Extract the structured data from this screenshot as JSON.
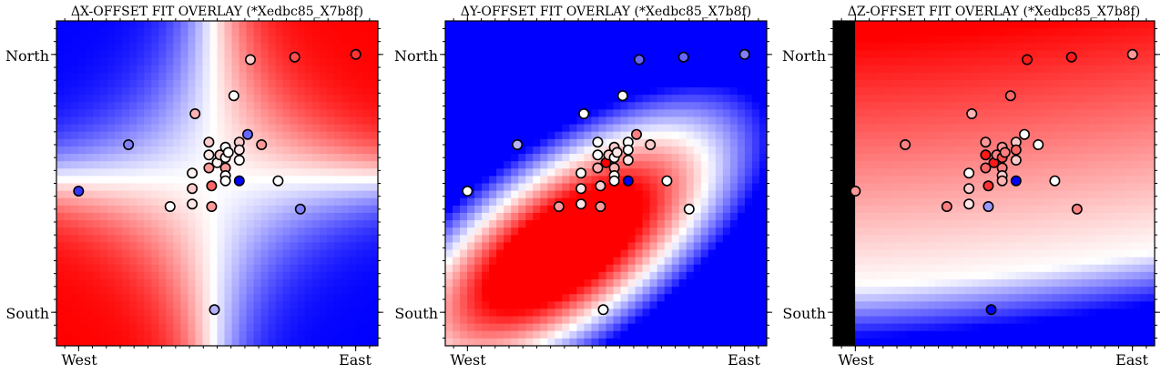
{
  "colors": {
    "red": "#ff0000",
    "white": "#ffffff",
    "blue": "#0000ff",
    "marker_edge": "#000000",
    "tick": "#000000"
  },
  "charts": [
    {
      "title": "ΔX-OFFSET FIT OVERLAY (*Xedbc85_X7b8f)",
      "xticks": [
        "West",
        "East"
      ],
      "yticks": [
        "North",
        "South"
      ]
    },
    {
      "title": "ΔY-OFFSET FIT OVERLAY (*Xedbc85_X7b8f)",
      "xticks": [
        "West",
        "East"
      ],
      "yticks": [
        "North",
        "South"
      ]
    },
    {
      "title": "ΔZ-OFFSET FIT OVERLAY (*Xedbc85_X7b8f)",
      "xticks": [
        "West",
        "East"
      ],
      "yticks": [
        "North",
        "South"
      ]
    }
  ],
  "chart_data": [
    {
      "type": "heatmap",
      "title": "ΔX-OFFSET FIT OVERLAY (*Xedbc85_X7b8f)",
      "xlim": [
        -0.08,
        1.08
      ],
      "ylim": [
        -0.13,
        1.13
      ],
      "xticks": [
        {
          "label": "West",
          "value": 0
        },
        {
          "label": "East",
          "value": 1
        }
      ],
      "yticks": [
        {
          "label": "North",
          "value": 1
        },
        {
          "label": "South",
          "value": 0
        }
      ],
      "colormap": "bwr",
      "background_field": "red upper-right and lower-left, blue upper-left and lower-right",
      "points": [
        {
          "x": 0.0,
          "y": 0.47,
          "c": -0.8
        },
        {
          "x": 0.18,
          "y": 0.65,
          "c": -0.5
        },
        {
          "x": 0.33,
          "y": 0.41,
          "c": 0.0
        },
        {
          "x": 0.41,
          "y": 0.54,
          "c": 0.05
        },
        {
          "x": 0.41,
          "y": 0.48,
          "c": 0.2
        },
        {
          "x": 0.41,
          "y": 0.42,
          "c": 0.1
        },
        {
          "x": 0.42,
          "y": 0.77,
          "c": 0.3
        },
        {
          "x": 0.47,
          "y": 0.56,
          "c": 0.4
        },
        {
          "x": 0.47,
          "y": 0.66,
          "c": 0.2
        },
        {
          "x": 0.47,
          "y": 0.61,
          "c": 0.1
        },
        {
          "x": 0.48,
          "y": 0.49,
          "c": 0.6
        },
        {
          "x": 0.48,
          "y": 0.41,
          "c": 0.4
        },
        {
          "x": 0.49,
          "y": 0.01,
          "c": -0.3
        },
        {
          "x": 0.5,
          "y": 0.58,
          "c": 0.05
        },
        {
          "x": 0.51,
          "y": 0.61,
          "c": 0.2
        },
        {
          "x": 0.53,
          "y": 0.6,
          "c": 0.0
        },
        {
          "x": 0.53,
          "y": 0.64,
          "c": 0.0
        },
        {
          "x": 0.53,
          "y": 0.56,
          "c": 0.4
        },
        {
          "x": 0.53,
          "y": 0.53,
          "c": 0.0
        },
        {
          "x": 0.53,
          "y": 0.51,
          "c": 0.0
        },
        {
          "x": 0.54,
          "y": 0.62,
          "c": 0.0
        },
        {
          "x": 0.56,
          "y": 0.84,
          "c": 0.0
        },
        {
          "x": 0.58,
          "y": 0.66,
          "c": 0.2
        },
        {
          "x": 0.58,
          "y": 0.63,
          "c": 0.1
        },
        {
          "x": 0.58,
          "y": 0.59,
          "c": 0.0
        },
        {
          "x": 0.58,
          "y": 0.51,
          "c": -1.0
        },
        {
          "x": 0.61,
          "y": 0.69,
          "c": -0.6
        },
        {
          "x": 0.62,
          "y": 0.98,
          "c": 0.2
        },
        {
          "x": 0.66,
          "y": 0.65,
          "c": 0.4
        },
        {
          "x": 0.72,
          "y": 0.51,
          "c": 0.0
        },
        {
          "x": 0.78,
          "y": 0.99,
          "c": 0.7
        },
        {
          "x": 0.8,
          "y": 0.4,
          "c": -0.5
        },
        {
          "x": 1.0,
          "y": 1.0,
          "c": 0.8
        }
      ]
    },
    {
      "type": "heatmap",
      "title": "ΔY-OFFSET FIT OVERLAY (*Xedbc85_X7b8f)",
      "xlim": [
        -0.08,
        1.08
      ],
      "ylim": [
        -0.13,
        1.13
      ],
      "xticks": [
        {
          "label": "West",
          "value": 0
        },
        {
          "label": "East",
          "value": 1
        }
      ],
      "yticks": [
        {
          "label": "North",
          "value": 1
        },
        {
          "label": "South",
          "value": 0
        }
      ],
      "colormap": "bwr",
      "background_field": "red elongated blob lower-left to center, blue elsewhere (strong upper-left and right)",
      "points": [
        {
          "x": 0.0,
          "y": 0.47,
          "c": 0.0
        },
        {
          "x": 0.18,
          "y": 0.65,
          "c": -0.3
        },
        {
          "x": 0.33,
          "y": 0.41,
          "c": 0.4
        },
        {
          "x": 0.41,
          "y": 0.54,
          "c": 0.0
        },
        {
          "x": 0.41,
          "y": 0.48,
          "c": 0.1
        },
        {
          "x": 0.41,
          "y": 0.42,
          "c": 0.1
        },
        {
          "x": 0.42,
          "y": 0.77,
          "c": 0.0
        },
        {
          "x": 0.47,
          "y": 0.56,
          "c": 0.3
        },
        {
          "x": 0.47,
          "y": 0.66,
          "c": 0.0
        },
        {
          "x": 0.47,
          "y": 0.61,
          "c": 0.0
        },
        {
          "x": 0.48,
          "y": 0.49,
          "c": 0.2
        },
        {
          "x": 0.48,
          "y": 0.41,
          "c": 0.4
        },
        {
          "x": 0.49,
          "y": 0.01,
          "c": 0.0
        },
        {
          "x": 0.5,
          "y": 0.58,
          "c": 1.0
        },
        {
          "x": 0.51,
          "y": 0.61,
          "c": 0.2
        },
        {
          "x": 0.53,
          "y": 0.6,
          "c": 0.0
        },
        {
          "x": 0.53,
          "y": 0.64,
          "c": 0.2
        },
        {
          "x": 0.53,
          "y": 0.56,
          "c": 0.3
        },
        {
          "x": 0.53,
          "y": 0.53,
          "c": 0.0
        },
        {
          "x": 0.53,
          "y": 0.51,
          "c": 0.0
        },
        {
          "x": 0.54,
          "y": 0.62,
          "c": 0.1
        },
        {
          "x": 0.56,
          "y": 0.84,
          "c": 0.0
        },
        {
          "x": 0.58,
          "y": 0.66,
          "c": 0.0
        },
        {
          "x": 0.58,
          "y": 0.63,
          "c": 0.0
        },
        {
          "x": 0.58,
          "y": 0.59,
          "c": 0.1
        },
        {
          "x": 0.58,
          "y": 0.51,
          "c": -1.0
        },
        {
          "x": 0.61,
          "y": 0.69,
          "c": 0.5
        },
        {
          "x": 0.62,
          "y": 0.98,
          "c": -0.6
        },
        {
          "x": 0.66,
          "y": 0.65,
          "c": 0.2
        },
        {
          "x": 0.72,
          "y": 0.51,
          "c": 0.0
        },
        {
          "x": 0.78,
          "y": 0.99,
          "c": -0.6
        },
        {
          "x": 0.8,
          "y": 0.4,
          "c": 0.0
        },
        {
          "x": 1.0,
          "y": 1.0,
          "c": -0.5
        }
      ]
    },
    {
      "type": "heatmap",
      "title": "ΔZ-OFFSET FIT OVERLAY (*Xedbc85_X7b8f)",
      "xlim": [
        -0.08,
        1.08
      ],
      "ylim": [
        -0.13,
        1.13
      ],
      "xticks": [
        {
          "label": "West",
          "value": 0
        },
        {
          "label": "East",
          "value": 1
        }
      ],
      "yticks": [
        {
          "label": "North",
          "value": 1
        },
        {
          "label": "South",
          "value": 0
        }
      ],
      "colormap": "bwr",
      "background_field": "red at top fading to white, blue at bottom",
      "points": [
        {
          "x": 0.0,
          "y": 0.47,
          "c": 0.4
        },
        {
          "x": 0.18,
          "y": 0.65,
          "c": 0.5
        },
        {
          "x": 0.33,
          "y": 0.41,
          "c": 0.5
        },
        {
          "x": 0.41,
          "y": 0.54,
          "c": 0.0
        },
        {
          "x": 0.41,
          "y": 0.48,
          "c": 0.2
        },
        {
          "x": 0.41,
          "y": 0.42,
          "c": 0.1
        },
        {
          "x": 0.42,
          "y": 0.77,
          "c": 0.3
        },
        {
          "x": 0.47,
          "y": 0.56,
          "c": 0.6
        },
        {
          "x": 0.47,
          "y": 0.66,
          "c": 0.4
        },
        {
          "x": 0.47,
          "y": 0.61,
          "c": 0.9
        },
        {
          "x": 0.48,
          "y": 0.49,
          "c": 0.8
        },
        {
          "x": 0.48,
          "y": 0.41,
          "c": -0.4
        },
        {
          "x": 0.49,
          "y": 0.01,
          "c": -1.0
        },
        {
          "x": 0.5,
          "y": 0.58,
          "c": 0.9
        },
        {
          "x": 0.51,
          "y": 0.61,
          "c": 0.5
        },
        {
          "x": 0.53,
          "y": 0.6,
          "c": 0.7
        },
        {
          "x": 0.53,
          "y": 0.64,
          "c": 0.4
        },
        {
          "x": 0.53,
          "y": 0.56,
          "c": 0.5
        },
        {
          "x": 0.53,
          "y": 0.53,
          "c": 0.2
        },
        {
          "x": 0.53,
          "y": 0.51,
          "c": 0.3
        },
        {
          "x": 0.54,
          "y": 0.62,
          "c": 0.5
        },
        {
          "x": 0.56,
          "y": 0.84,
          "c": 0.6
        },
        {
          "x": 0.58,
          "y": 0.66,
          "c": 0.2
        },
        {
          "x": 0.58,
          "y": 0.63,
          "c": 0.6
        },
        {
          "x": 0.58,
          "y": 0.59,
          "c": 0.2
        },
        {
          "x": 0.58,
          "y": 0.51,
          "c": -1.0
        },
        {
          "x": 0.61,
          "y": 0.69,
          "c": 0.0
        },
        {
          "x": 0.62,
          "y": 0.98,
          "c": 0.9
        },
        {
          "x": 0.66,
          "y": 0.65,
          "c": 0.0
        },
        {
          "x": 0.72,
          "y": 0.51,
          "c": 0.0
        },
        {
          "x": 0.78,
          "y": 0.99,
          "c": 0.9
        },
        {
          "x": 0.8,
          "y": 0.4,
          "c": 0.5
        },
        {
          "x": 1.0,
          "y": 1.0,
          "c": 0.4
        }
      ]
    }
  ]
}
